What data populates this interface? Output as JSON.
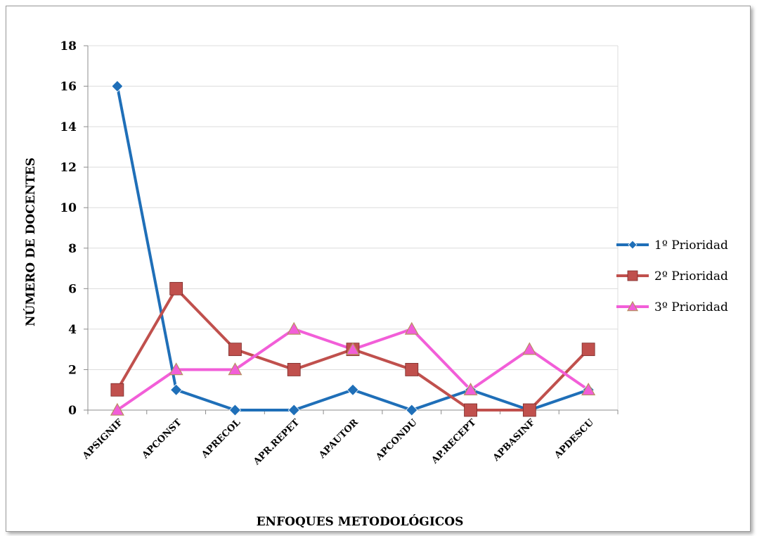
{
  "chart_data": {
    "type": "line",
    "title": "",
    "xlabel": "ENFOQUES METODOLÓGICOS",
    "ylabel": "NÚMERO DE DOCENTES",
    "categories": [
      "APSIGNIF",
      "APCONST",
      "APRECOL",
      "APR.REPET",
      "APAUTOR",
      "APCONDU",
      "AP.RECEPT",
      "APBASINF",
      "APDESCU"
    ],
    "ylim": [
      0,
      18
    ],
    "yticks": [
      0,
      2,
      4,
      6,
      8,
      10,
      12,
      14,
      16,
      18
    ],
    "grid": true,
    "legend_position": "right",
    "series": [
      {
        "name": "1º Prioridad",
        "color": "#1f6fb8",
        "marker": "diamond",
        "values": [
          16,
          1,
          0,
          0,
          1,
          0,
          1,
          0,
          1
        ]
      },
      {
        "name": "2º Prioridad",
        "color": "#c0504d",
        "marker": "square",
        "values": [
          1,
          6,
          3,
          2,
          3,
          2,
          0,
          0,
          3
        ]
      },
      {
        "name": "3º Prioridad",
        "color": "#f25ed8",
        "marker": "triangle",
        "values": [
          0,
          2,
          2,
          4,
          3,
          4,
          1,
          3,
          1
        ]
      }
    ]
  }
}
